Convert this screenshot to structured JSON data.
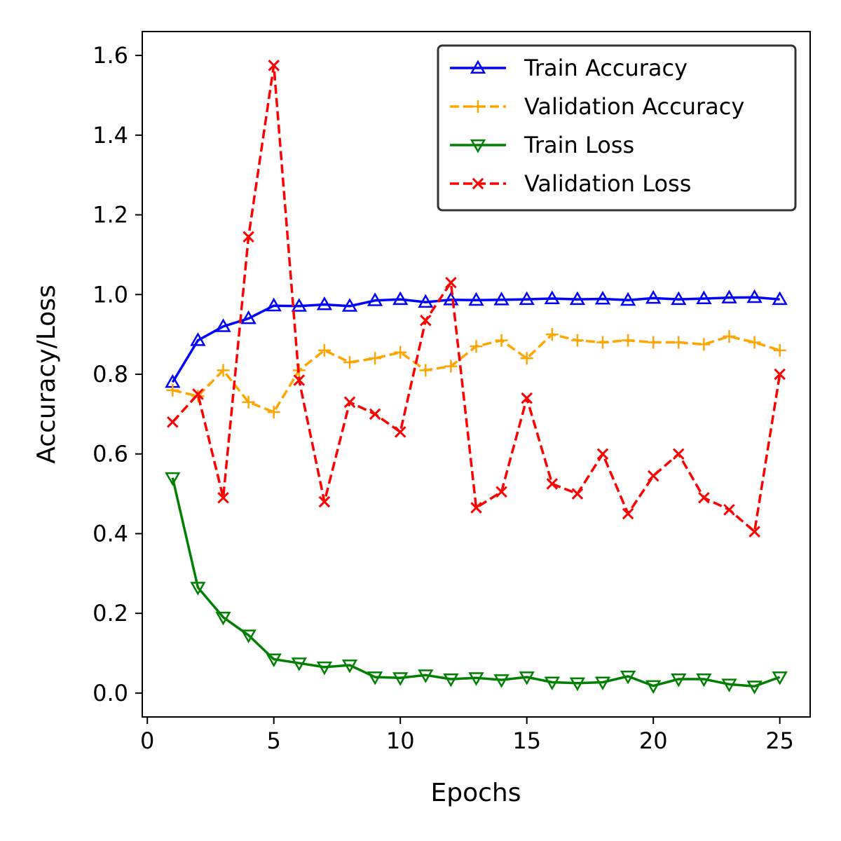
{
  "chart_data": {
    "type": "line",
    "title": "",
    "xlabel": "Epochs",
    "ylabel": "Accuracy/Loss",
    "xlim": [
      -0.2,
      26.2
    ],
    "ylim": [
      -0.06,
      1.66
    ],
    "xticks": [
      0,
      5,
      10,
      15,
      20,
      25
    ],
    "xtick_labels": [
      "0",
      "5",
      "10",
      "15",
      "20",
      "25"
    ],
    "yticks": [
      0.0,
      0.2,
      0.4,
      0.6,
      0.8,
      1.0,
      1.2,
      1.4,
      1.6
    ],
    "ytick_labels": [
      "0.0",
      "0.2",
      "0.4",
      "0.6",
      "0.8",
      "1.0",
      "1.2",
      "1.4",
      "1.6"
    ],
    "grid": false,
    "legend_position": "top-right",
    "x": [
      1,
      2,
      3,
      4,
      5,
      6,
      7,
      8,
      9,
      10,
      11,
      12,
      13,
      14,
      15,
      16,
      17,
      18,
      19,
      20,
      21,
      22,
      23,
      24,
      25
    ],
    "series": [
      {
        "name": "Train Accuracy",
        "color": "#0000ff",
        "line_style": "solid",
        "marker": "triangle-up",
        "values": [
          0.78,
          0.885,
          0.92,
          0.94,
          0.972,
          0.971,
          0.975,
          0.971,
          0.985,
          0.988,
          0.981,
          0.987,
          0.986,
          0.987,
          0.988,
          0.99,
          0.988,
          0.989,
          0.986,
          0.991,
          0.988,
          0.99,
          0.992,
          0.993,
          0.988
        ]
      },
      {
        "name": "Validation Accuracy",
        "color": "#ffa500",
        "line_style": "dashed",
        "marker": "plus",
        "values": [
          0.76,
          0.745,
          0.81,
          0.73,
          0.705,
          0.81,
          0.86,
          0.83,
          0.84,
          0.855,
          0.81,
          0.82,
          0.87,
          0.885,
          0.84,
          0.9,
          0.885,
          0.88,
          0.885,
          0.88,
          0.88,
          0.875,
          0.895,
          0.88,
          0.86
        ]
      },
      {
        "name": "Train Loss",
        "color": "#008000",
        "line_style": "solid",
        "marker": "triangle-down",
        "values": [
          0.54,
          0.265,
          0.19,
          0.145,
          0.085,
          0.075,
          0.065,
          0.07,
          0.04,
          0.038,
          0.045,
          0.035,
          0.038,
          0.033,
          0.04,
          0.027,
          0.025,
          0.027,
          0.042,
          0.018,
          0.035,
          0.035,
          0.022,
          0.017,
          0.04
        ]
      },
      {
        "name": "Validation Loss",
        "color": "#ff0000",
        "line_style": "dashed",
        "marker": "x",
        "values": [
          0.68,
          0.75,
          0.49,
          1.145,
          1.575,
          0.785,
          0.48,
          0.73,
          0.7,
          0.655,
          0.935,
          1.03,
          0.465,
          0.505,
          0.74,
          0.525,
          0.5,
          0.6,
          0.45,
          0.545,
          0.6,
          0.49,
          0.46,
          0.405,
          0.8
        ]
      }
    ]
  }
}
